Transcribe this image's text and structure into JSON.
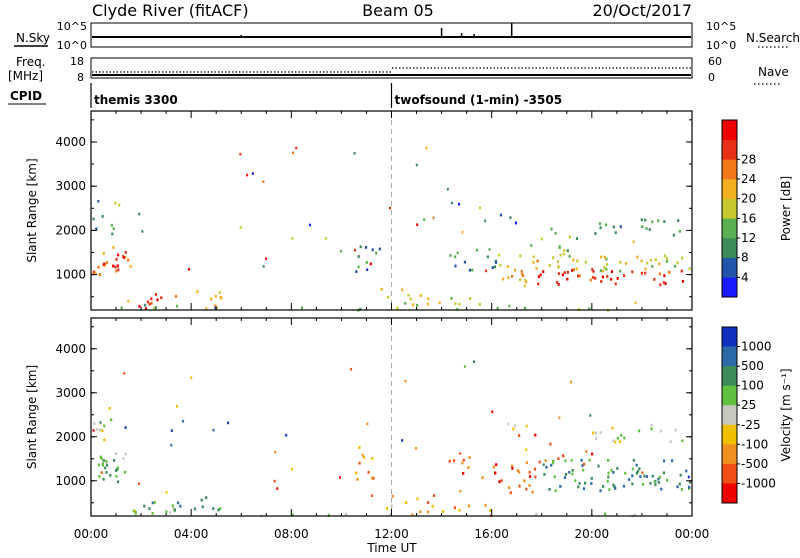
{
  "header": {
    "title": "Clyde River (fitACF)",
    "beam": "Beam 05",
    "date": "20/Oct/2017"
  },
  "status_panels": {
    "nsky_label": "N.Sky",
    "nsky_ticks": [
      "10^5",
      "10^0"
    ],
    "nsearch_label": "N.Search",
    "nsearch_ticks": [
      "10^5",
      "10^0"
    ],
    "freq_label_line1": "Freq.",
    "freq_label_line2": "[MHz]",
    "freq_ticks": [
      "18",
      "8"
    ],
    "nave_label": "Nave",
    "nave_ticks": [
      "60",
      "0"
    ],
    "cpid_label": "CPID",
    "cpid_segments": [
      {
        "start_hour": 0,
        "label": "themis 3300"
      },
      {
        "start_hour": 12,
        "label": "twofsound (1-min) -3505"
      }
    ]
  },
  "chart_data": [
    {
      "type": "heatmap",
      "variable": "power",
      "ylabel": "Slant Range [km]",
      "ylim": [
        200,
        4700
      ],
      "yticks": [
        "1000",
        "2000",
        "3000",
        "4000"
      ],
      "xlim": [
        0,
        24
      ],
      "colorbar_label": "Power [dB]",
      "colorbar_ticks": [
        "4",
        "8",
        "12",
        "16",
        "20",
        "24",
        "28"
      ],
      "colorbar_colors": [
        "#1a1aff",
        "#2255aa",
        "#3a8a5a",
        "#5ab050",
        "#c8c830",
        "#f0b020",
        "#f07818",
        "#e83018",
        "#ee0000"
      ]
    },
    {
      "type": "heatmap",
      "variable": "velocity",
      "ylabel": "Slant Range [km]",
      "ylim": [
        200,
        4700
      ],
      "yticks": [
        "1000",
        "2000",
        "3000",
        "4000"
      ],
      "xlim": [
        0,
        24
      ],
      "xticks": [
        "00:00",
        "04:00",
        "08:00",
        "12:00",
        "16:00",
        "20:00",
        "00:00"
      ],
      "xlabel": "Time UT",
      "colorbar_label": "Velocity [m s⁻¹]",
      "colorbar_ticks": [
        "1000",
        "500",
        "100",
        "25",
        "-25",
        "-100",
        "-500",
        "-1000"
      ],
      "colorbar_colors": [
        "#1030c0",
        "#2a6aa8",
        "#3a8a5a",
        "#60c040",
        "#c8c8c0",
        "#f0c000",
        "#f09020",
        "#f05018",
        "#ee0000"
      ]
    }
  ]
}
